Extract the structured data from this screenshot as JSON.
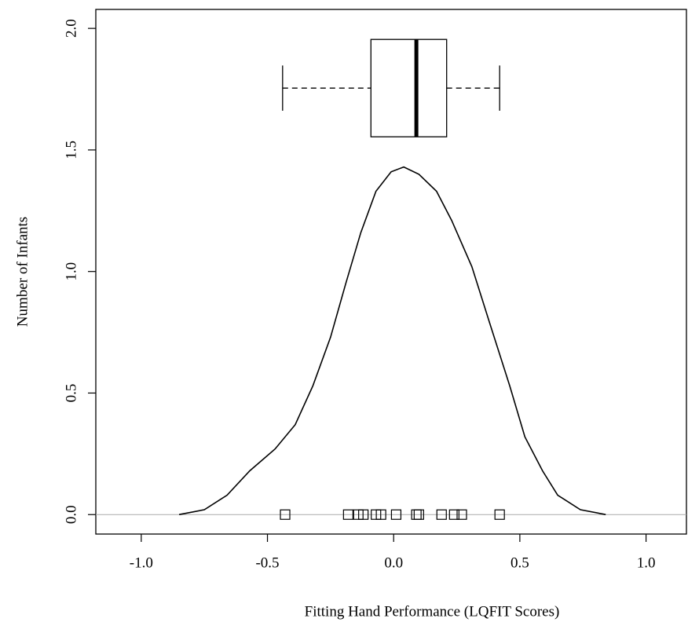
{
  "chart_data": {
    "type": "density",
    "x_label": "Fitting Hand Performance (LQFIT Scores)",
    "y_label": "Number of Infants",
    "xlim": [
      -1.18,
      1.16
    ],
    "ylim": [
      -0.08,
      2.078
    ],
    "xticks": [
      {
        "value": -1,
        "label": "-1.0"
      },
      -0.5,
      {
        "value": 0,
        "label": "0.0"
      },
      0.5,
      {
        "value": 1,
        "label": "1.0"
      }
    ],
    "yticks": [
      {
        "value": 0,
        "label": "0.0"
      },
      0.5,
      {
        "value": 1,
        "label": "1.0"
      },
      1.5,
      {
        "value": 2,
        "label": "2.0"
      }
    ],
    "baseline": 0,
    "curve": {
      "color": "#000000",
      "x": [
        -0.85,
        -0.75,
        -0.66,
        -0.57,
        -0.47,
        -0.39,
        -0.32,
        -0.25,
        -0.19,
        -0.13,
        -0.07,
        -0.01,
        0.04,
        0.1,
        0.17,
        0.23,
        0.31,
        0.38,
        0.46,
        0.52,
        0.59,
        0.65,
        0.74,
        0.84
      ],
      "y": [
        0.0,
        0.02,
        0.08,
        0.18,
        0.27,
        0.37,
        0.53,
        0.73,
        0.95,
        1.16,
        1.33,
        1.41,
        1.43,
        1.4,
        1.33,
        1.21,
        1.02,
        0.79,
        0.53,
        0.32,
        0.18,
        0.08,
        0.02,
        0.0
      ]
    },
    "box": {
      "whisker_low": -0.44,
      "q1": -0.09,
      "median": 0.09,
      "q3": 0.21,
      "whisker_high": 0.42
    },
    "points": [
      -0.43,
      -0.18,
      -0.14,
      -0.12,
      -0.07,
      -0.05,
      0.01,
      0.09,
      0.1,
      0.19,
      0.24,
      0.27,
      0.42
    ]
  }
}
